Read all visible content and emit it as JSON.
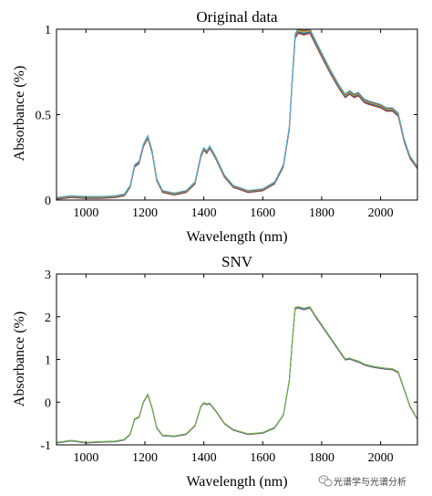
{
  "chart_data": [
    {
      "type": "line",
      "title": "Original data",
      "xlabel": "Wavelength (nm)",
      "ylabel": "Absorbance (%)",
      "xlim": [
        900,
        2125
      ],
      "ylim": [
        0,
        1
      ],
      "xticks": [
        1000,
        1200,
        1400,
        1600,
        1800,
        2000
      ],
      "xtick_labels": [
        "1000",
        "1200",
        "1400",
        "1600",
        "1800",
        "2000"
      ],
      "yticks": [
        0,
        0.5,
        1
      ],
      "ytick_labels": [
        "0",
        "0.5",
        "1"
      ],
      "grid": false,
      "spectrum": {
        "x": [
          900,
          950,
          1000,
          1050,
          1100,
          1130,
          1150,
          1165,
          1180,
          1195,
          1210,
          1225,
          1240,
          1260,
          1300,
          1340,
          1370,
          1390,
          1400,
          1410,
          1420,
          1440,
          1470,
          1500,
          1550,
          1600,
          1640,
          1670,
          1690,
          1700,
          1710,
          1720,
          1740,
          1760,
          1780,
          1800,
          1830,
          1860,
          1880,
          1895,
          1910,
          1925,
          1945,
          1960,
          1980,
          2000,
          2020,
          2040,
          2060,
          2080,
          2100,
          2125
        ],
        "y": [
          0.01,
          0.02,
          0.015,
          0.015,
          0.02,
          0.03,
          0.08,
          0.2,
          0.22,
          0.32,
          0.37,
          0.28,
          0.12,
          0.05,
          0.035,
          0.05,
          0.1,
          0.26,
          0.3,
          0.28,
          0.31,
          0.25,
          0.14,
          0.08,
          0.05,
          0.06,
          0.1,
          0.2,
          0.42,
          0.7,
          0.96,
          0.99,
          0.98,
          0.99,
          0.92,
          0.85,
          0.75,
          0.66,
          0.61,
          0.63,
          0.61,
          0.62,
          0.58,
          0.57,
          0.56,
          0.55,
          0.53,
          0.53,
          0.5,
          0.35,
          0.25,
          0.19
        ]
      },
      "offsets": [
        -0.015,
        -0.01,
        -0.005,
        0,
        0.005,
        0.01,
        0.015
      ],
      "series_colors": [
        "#d95319",
        "#7e2f8e",
        "#0072bd",
        "#77ac30",
        "#edb120",
        "#a2142f",
        "#4dbeee"
      ]
    },
    {
      "type": "line",
      "title": "SNV",
      "xlabel": "Wavelength (nm)",
      "ylabel": "Absorbance (%)",
      "xlim": [
        900,
        2125
      ],
      "ylim": [
        -1,
        3
      ],
      "xticks": [
        1000,
        1200,
        1400,
        1600,
        1800,
        2000
      ],
      "xtick_labels": [
        "1000",
        "1200",
        "1400",
        "1600",
        "1800",
        "2000"
      ],
      "yticks": [
        -1,
        0,
        1,
        2,
        3
      ],
      "ytick_labels": [
        "-1",
        "0",
        "1",
        "2",
        "3"
      ],
      "grid": false,
      "spectrum": {
        "x": [
          900,
          950,
          1000,
          1050,
          1100,
          1130,
          1150,
          1165,
          1180,
          1195,
          1210,
          1225,
          1240,
          1260,
          1300,
          1340,
          1370,
          1390,
          1400,
          1410,
          1420,
          1440,
          1470,
          1500,
          1550,
          1600,
          1640,
          1670,
          1690,
          1700,
          1710,
          1720,
          1740,
          1760,
          1780,
          1800,
          1830,
          1860,
          1880,
          1895,
          1910,
          1925,
          1945,
          1960,
          1980,
          2000,
          2020,
          2040,
          2060,
          2080,
          2100,
          2125
        ],
        "y": [
          -0.95,
          -0.9,
          -0.95,
          -0.93,
          -0.92,
          -0.88,
          -0.75,
          -0.4,
          -0.35,
          0.0,
          0.18,
          -0.15,
          -0.6,
          -0.78,
          -0.8,
          -0.75,
          -0.55,
          -0.1,
          -0.02,
          -0.05,
          -0.03,
          -0.2,
          -0.5,
          -0.65,
          -0.75,
          -0.72,
          -0.6,
          -0.3,
          0.5,
          1.4,
          2.2,
          2.22,
          2.18,
          2.22,
          2.0,
          1.8,
          1.5,
          1.2,
          1.0,
          1.02,
          0.98,
          0.95,
          0.88,
          0.85,
          0.82,
          0.8,
          0.78,
          0.77,
          0.7,
          0.3,
          -0.1,
          -0.4
        ]
      },
      "offsets": [
        -0.02,
        -0.01,
        0,
        0.01,
        0.02
      ],
      "series_colors": [
        "#d95319",
        "#7e2f8e",
        "#0072bd",
        "#4dbeee",
        "#77ac30"
      ]
    }
  ],
  "watermark": {
    "icon": "wechat-icon",
    "text": "光谱学与光谱分析"
  }
}
